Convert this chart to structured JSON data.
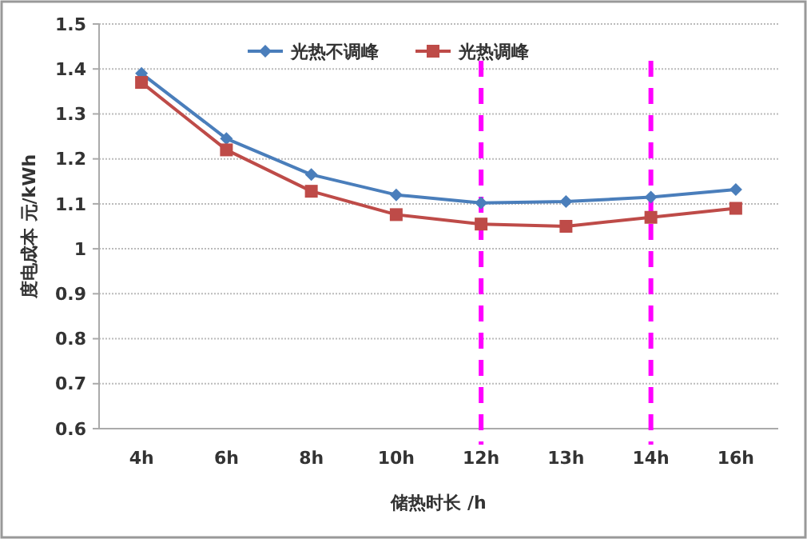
{
  "chart_data": {
    "type": "line",
    "xlabel": "储热时长 /h",
    "ylabel": "度电成本 元/kWh",
    "categories": [
      "4h",
      "6h",
      "8h",
      "10h",
      "12h",
      "13h",
      "14h",
      "16h"
    ],
    "series": [
      {
        "name": "光热不调峰",
        "color": "#4a7ebb",
        "marker": "diamond",
        "values": [
          1.39,
          1.245,
          1.165,
          1.12,
          1.102,
          1.105,
          1.115,
          1.132
        ]
      },
      {
        "name": "光热调峰",
        "color": "#be4b48",
        "marker": "square",
        "values": [
          1.37,
          1.22,
          1.128,
          1.076,
          1.055,
          1.05,
          1.07,
          1.09
        ]
      }
    ],
    "ylim": [
      0.6,
      1.5
    ],
    "yticks": [
      0.6,
      0.7,
      0.8,
      0.9,
      1,
      1.1,
      1.2,
      1.3,
      1.4,
      1.5
    ],
    "grid": "y",
    "legend": "top",
    "line_style": "solid",
    "ref_lines": [
      {
        "axis": "x",
        "value": "12h",
        "color": "#ff00ff",
        "line_style": "dashed"
      },
      {
        "axis": "x",
        "value": "14h",
        "color": "#ff00ff",
        "line_style": "dashed"
      }
    ]
  }
}
